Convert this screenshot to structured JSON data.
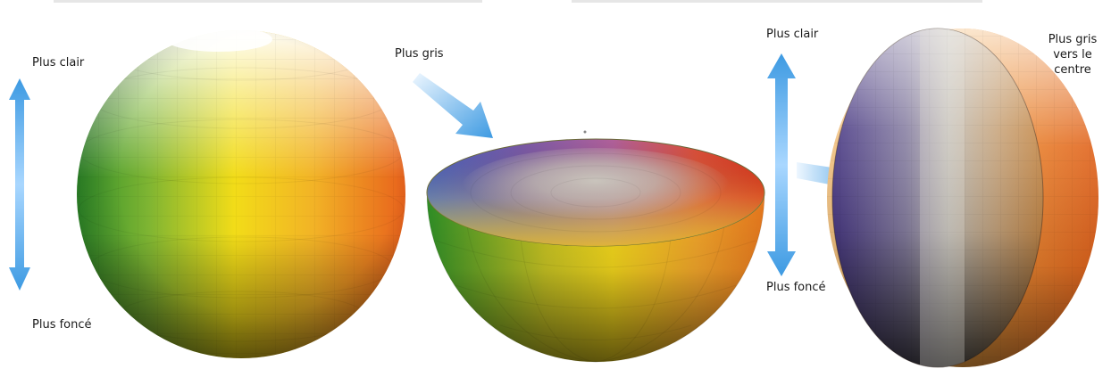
{
  "labels": {
    "lighter_left": "Plus clair",
    "darker_left": "Plus foncé",
    "grayer": "Plus gris",
    "lighter_right": "Plus clair",
    "darker_right": "Plus foncé",
    "grayer_center_1": "Plus gris",
    "grayer_center_2": "vers le",
    "grayer_center_3": "centre"
  },
  "colors": {
    "arrow": "#4aa3e6",
    "arrow_light": "#bfe2ff",
    "hue_red": "#e2301c",
    "hue_orange": "#f08a24",
    "hue_yellow": "#f4d81a",
    "hue_green": "#3f9a2a",
    "hue_violet": "#6f4a9a",
    "hue_blue": "#4a63c8",
    "neutral_gray": "#b9b4aa"
  },
  "icons": [
    "vertical-double-arrow",
    "diagonal-arrow",
    "horizontal-arrow"
  ]
}
